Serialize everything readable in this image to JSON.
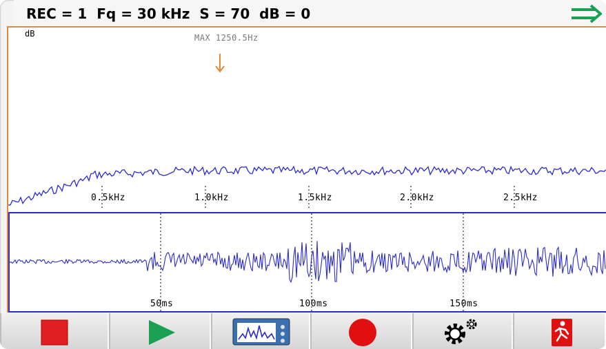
{
  "header": {
    "status_text": "REC = 1  Fq = 30 kHz  S = 70  dB = 0"
  },
  "spectrum": {
    "unit_label": "dB",
    "marker_label": "MAX 1250.5Hz",
    "freq_ticks": [
      "0.5kHz",
      "1.0kHz",
      "1.5kHz",
      "2.0kHz",
      "2.5kHz"
    ]
  },
  "waveform": {
    "time_ticks": [
      "50ms",
      "100ms",
      "150ms"
    ]
  },
  "toolbar": {
    "buttons": [
      {
        "name": "stop",
        "icon": "stop-icon"
      },
      {
        "name": "play",
        "icon": "play-icon"
      },
      {
        "name": "spectrum-view",
        "icon": "analyzer-icon"
      },
      {
        "name": "record",
        "icon": "record-icon"
      },
      {
        "name": "settings",
        "icon": "gears-icon"
      },
      {
        "name": "exit",
        "icon": "exit-run-icon"
      }
    ]
  },
  "colors": {
    "trace": "#2a2ad0",
    "frame": "#e08a3c",
    "marker": "#e08a3c",
    "stop": "#e02020",
    "play": "#1aa052",
    "record": "#e01010",
    "exit": "#e01010"
  }
}
